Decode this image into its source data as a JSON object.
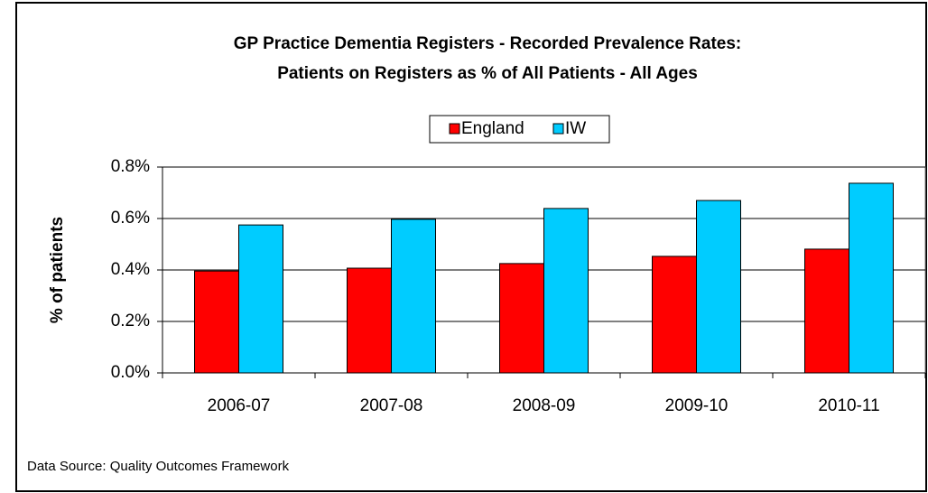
{
  "chart_data": {
    "type": "bar",
    "title": [
      "GP Practice Dementia Registers - Recorded Prevalence Rates:",
      "Patients on Registers as % of All Patients - All Ages"
    ],
    "y_label": "% of patients",
    "source": "Data Source: Quality Outcomes Framework",
    "categories": [
      "2006-07",
      "2007-08",
      "2008-09",
      "2009-10",
      "2010-11"
    ],
    "series": [
      {
        "name": "England",
        "color": "#ff0000",
        "values": [
          0.396,
          0.407,
          0.425,
          0.453,
          0.481
        ]
      },
      {
        "name": "IW",
        "color": "#00ccff",
        "values": [
          0.575,
          0.597,
          0.639,
          0.67,
          0.737
        ]
      }
    ],
    "ylim": [
      0,
      0.8
    ],
    "yticks": [
      {
        "value": 0,
        "label": "0.0%"
      },
      {
        "value": 0.2,
        "label": "0.2%"
      },
      {
        "value": 0.4,
        "label": "0.4%"
      },
      {
        "value": 0.6,
        "label": "0.6%"
      },
      {
        "value": 0.8,
        "label": "0.8%"
      }
    ],
    "grid": true,
    "legend": "top"
  }
}
